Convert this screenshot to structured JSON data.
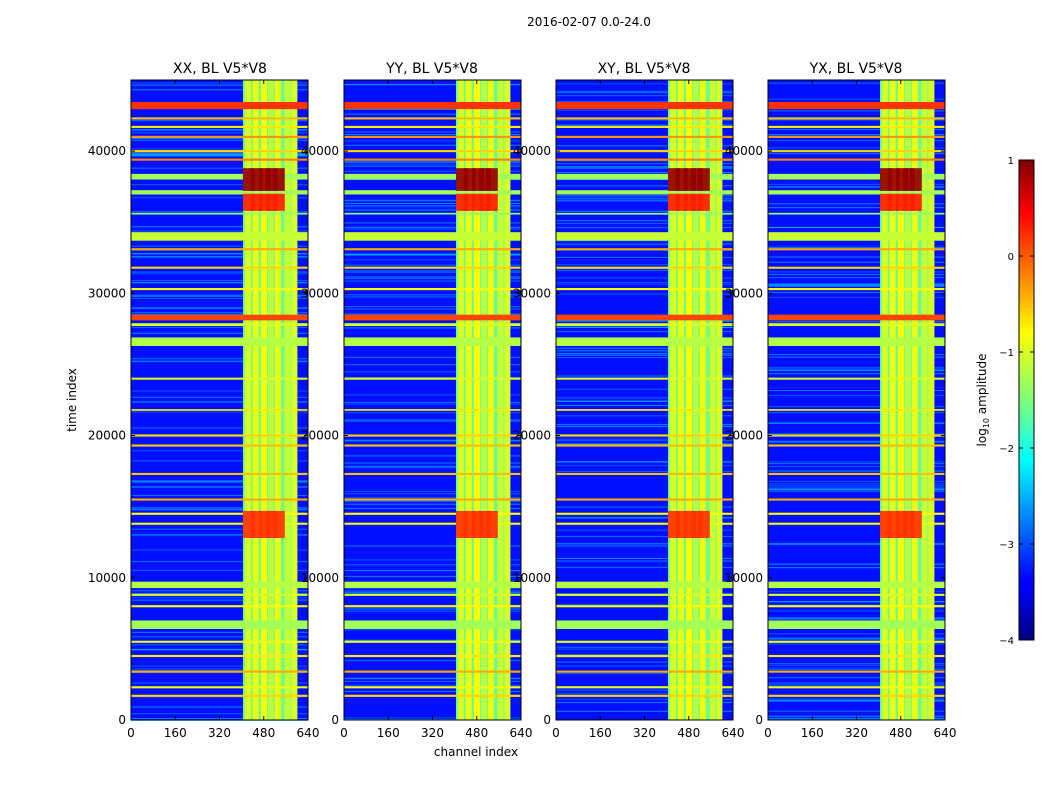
{
  "chart_data": {
    "type": "heatmap",
    "suptitle": "2016-02-07 0.0-24.0",
    "xlabel": "channel index",
    "ylabel": "time index",
    "xlim": [
      0,
      640
    ],
    "ylim": [
      0,
      45000
    ],
    "x_ticks": [
      "0",
      "160",
      "320",
      "480",
      "640"
    ],
    "y_ticks": [
      "0",
      "10000",
      "20000",
      "30000",
      "40000"
    ],
    "x_tick_values": [
      0,
      160,
      320,
      480,
      640
    ],
    "y_tick_values": [
      0,
      10000,
      20000,
      30000,
      40000
    ],
    "panels": [
      {
        "title": "XX, BL V5*V8"
      },
      {
        "title": "YY, BL V5*V8"
      },
      {
        "title": "XY, BL V5*V8"
      },
      {
        "title": "YX, BL V5*V8"
      }
    ],
    "colorbar": {
      "label": "log10 amplitude",
      "label_base": "log",
      "label_sub": "10",
      "label_rest": " amplitude",
      "range": [
        -4,
        1
      ],
      "ticks": [
        "1",
        "0",
        "−1",
        "−2",
        "−3",
        "−4"
      ],
      "tick_values": [
        1,
        0,
        -1,
        -2,
        -3,
        -4
      ]
    },
    "background_level": -3.3,
    "signal_band": {
      "channel_start": 405,
      "channel_end": 590,
      "level": -1.6
    },
    "signal_columns": [
      {
        "channel": 412,
        "level": -1.0
      },
      {
        "channel": 440,
        "level": -0.9
      },
      {
        "channel": 470,
        "level": -0.8
      },
      {
        "channel": 495,
        "level": -1.2
      },
      {
        "channel": 520,
        "level": -0.9
      },
      {
        "channel": 555,
        "level": -1.1
      },
      {
        "channel": 580,
        "level": -1.0
      }
    ],
    "rfi_rows": [
      {
        "time": 43200,
        "level": 0.2,
        "width": 500
      },
      {
        "time": 42300,
        "level": -0.5,
        "width": 150
      },
      {
        "time": 41700,
        "level": -0.7,
        "width": 150
      },
      {
        "time": 41000,
        "level": -0.3,
        "width": 150
      },
      {
        "time": 40000,
        "level": -0.6,
        "width": 150
      },
      {
        "time": 39400,
        "level": -0.2,
        "width": 150
      },
      {
        "time": 38200,
        "level": -1.3,
        "width": 400
      },
      {
        "time": 37100,
        "level": -1.3,
        "width": 300
      },
      {
        "time": 35600,
        "level": -1.4,
        "width": 120
      },
      {
        "time": 34000,
        "level": -1.1,
        "width": 600
      },
      {
        "time": 33100,
        "level": -0.4,
        "width": 150
      },
      {
        "time": 31800,
        "level": -0.6,
        "width": 150
      },
      {
        "time": 30300,
        "level": -0.8,
        "width": 150
      },
      {
        "time": 28300,
        "level": 0.1,
        "width": 400
      },
      {
        "time": 27800,
        "level": -1.0,
        "width": 200
      },
      {
        "time": 26600,
        "level": -1.2,
        "width": 600
      },
      {
        "time": 24000,
        "level": -1.0,
        "width": 150
      },
      {
        "time": 21800,
        "level": -0.7,
        "width": 120
      },
      {
        "time": 20000,
        "level": -0.6,
        "width": 150
      },
      {
        "time": 19300,
        "level": -0.5,
        "width": 150
      },
      {
        "time": 17300,
        "level": -0.5,
        "width": 150
      },
      {
        "time": 15500,
        "level": -0.4,
        "width": 150
      },
      {
        "time": 14500,
        "level": -0.8,
        "width": 150
      },
      {
        "time": 13800,
        "level": -0.9,
        "width": 150
      },
      {
        "time": 9500,
        "level": -1.2,
        "width": 450
      },
      {
        "time": 8800,
        "level": -1.0,
        "width": 150
      },
      {
        "time": 8000,
        "level": -0.8,
        "width": 150
      },
      {
        "time": 6700,
        "level": -1.3,
        "width": 600
      },
      {
        "time": 5500,
        "level": -0.9,
        "width": 150
      },
      {
        "time": 4500,
        "level": -0.7,
        "width": 150
      },
      {
        "time": 3400,
        "level": -0.4,
        "width": 150
      },
      {
        "time": 2300,
        "level": -0.9,
        "width": 150
      },
      {
        "time": 1700,
        "level": -0.6,
        "width": 150
      }
    ],
    "bursts": [
      {
        "time_start": 37200,
        "time_end": 38800,
        "level": 0.9
      },
      {
        "time_start": 35800,
        "time_end": 37000,
        "level": 0.3
      },
      {
        "time_start": 12800,
        "time_end": 14700,
        "level": 0.2
      }
    ]
  }
}
